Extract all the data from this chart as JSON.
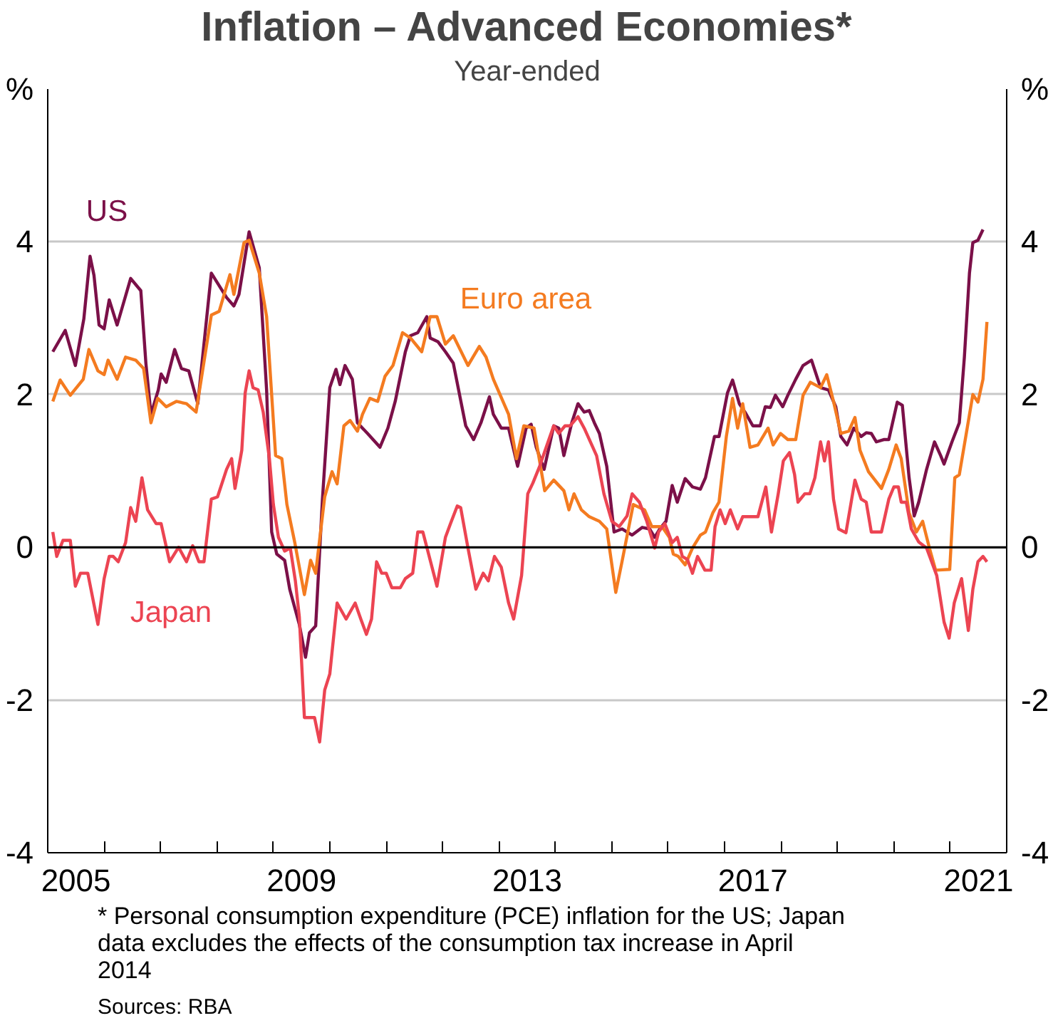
{
  "chart_data": {
    "type": "line",
    "title": "Inflation – Advanced Economies*",
    "subtitle": "Year-ended",
    "annotations": [
      "* Personal consumption expenditure (PCE) inflation for the US; Japan data excludes the effects of the consumption tax increase in April 2014",
      "Sources: RBA"
    ],
    "xlim": [
      2005,
      2022
    ],
    "xticks": [
      {
        "value": 2005.5,
        "label": "2005"
      },
      {
        "value": 2009.5,
        "label": "2009"
      },
      {
        "value": 2013.5,
        "label": "2013"
      },
      {
        "value": 2017.5,
        "label": "2017"
      },
      {
        "value": 2021.5,
        "label": "2021"
      },
      {
        "value": 2006,
        "label": null
      },
      {
        "value": 2007,
        "label": null
      },
      {
        "value": 2008,
        "label": null
      },
      {
        "value": 2009,
        "label": null
      },
      {
        "value": 2010,
        "label": null
      },
      {
        "value": 2011,
        "label": null
      },
      {
        "value": 2012,
        "label": null
      },
      {
        "value": 2013,
        "label": null
      },
      {
        "value": 2014,
        "label": null
      },
      {
        "value": 2015,
        "label": null
      },
      {
        "value": 2016,
        "label": null
      },
      {
        "value": 2017,
        "label": null
      },
      {
        "value": 2018,
        "label": null
      },
      {
        "value": 2019,
        "label": null
      },
      {
        "value": 2020,
        "label": null
      },
      {
        "value": 2021,
        "label": null
      }
    ],
    "ylim": [
      -4,
      6
    ],
    "yticks": [
      -4,
      -2,
      0,
      2,
      4,
      {
        "value": 6,
        "label": "%"
      }
    ],
    "y2lim": [
      -4,
      6
    ],
    "y2ticks": [
      -4,
      -2,
      0,
      2,
      4,
      {
        "value": 6,
        "label": "%"
      }
    ],
    "grid": "y",
    "legend": false,
    "line_style": "solid",
    "ref_lines": [
      {
        "axis": "y",
        "value": 0,
        "label": null,
        "color": "#000000"
      }
    ],
    "series": [
      {
        "name": "US",
        "color": "#7b1048",
        "x": [
          2005.09,
          2005.31,
          2005.49,
          2005.64,
          2005.75,
          2005.82,
          2005.91,
          2006.0,
          2006.09,
          2006.23,
          2006.47,
          2006.65,
          2006.74,
          2006.83,
          2006.96,
          2007.01,
          2007.1,
          2007.25,
          2007.37,
          2007.5,
          2007.66,
          2007.9,
          2008.17,
          2008.3,
          2008.39,
          2008.57,
          2008.75,
          2008.88,
          2008.97,
          2009.06,
          2009.2,
          2009.29,
          2009.46,
          2009.57,
          2009.64,
          2009.75,
          2009.87,
          2010.0,
          2010.11,
          2010.18,
          2010.27,
          2010.4,
          2010.49,
          2010.67,
          2010.89,
          2011.03,
          2011.16,
          2011.34,
          2011.43,
          2011.56,
          2011.72,
          2011.78,
          2011.92,
          2012.05,
          2012.19,
          2012.41,
          2012.55,
          2012.68,
          2012.83,
          2012.9,
          2013.04,
          2013.17,
          2013.33,
          2013.48,
          2013.57,
          2013.66,
          2013.8,
          2013.97,
          2014.06,
          2014.15,
          2014.29,
          2014.4,
          2014.51,
          2014.6,
          2014.69,
          2014.78,
          2014.91,
          2015.04,
          2015.18,
          2015.36,
          2015.54,
          2015.67,
          2015.76,
          2015.85,
          2015.96,
          2016.07,
          2016.16,
          2016.3,
          2016.43,
          2016.57,
          2016.66,
          2016.82,
          2016.9,
          2017.05,
          2017.14,
          2017.26,
          2017.36,
          2017.5,
          2017.63,
          2017.72,
          2017.81,
          2017.9,
          2018.03,
          2018.12,
          2018.26,
          2018.39,
          2018.54,
          2018.7,
          2018.84,
          2018.97,
          2019.06,
          2019.17,
          2019.29,
          2019.42,
          2019.51,
          2019.6,
          2019.69,
          2019.82,
          2019.91,
          2020.06,
          2020.15,
          2020.27,
          2020.36,
          2020.44,
          2020.58,
          2020.72,
          2020.83,
          2020.89,
          2021.03,
          2021.16,
          2021.25,
          2021.34,
          2021.4,
          2021.49,
          2021.58
        ],
        "values": [
          2.56,
          2.84,
          2.38,
          2.99,
          3.81,
          3.56,
          2.91,
          2.86,
          3.24,
          2.91,
          3.52,
          3.36,
          2.41,
          1.74,
          2.06,
          2.27,
          2.16,
          2.59,
          2.34,
          2.31,
          1.88,
          3.59,
          3.27,
          3.16,
          3.31,
          4.13,
          3.66,
          2.06,
          0.2,
          -0.09,
          -0.17,
          -0.55,
          -1.01,
          -1.44,
          -1.12,
          -1.03,
          0.63,
          2.09,
          2.33,
          2.13,
          2.38,
          2.2,
          1.63,
          1.49,
          1.31,
          1.56,
          1.91,
          2.56,
          2.77,
          2.81,
          3.02,
          2.74,
          2.69,
          2.56,
          2.41,
          1.59,
          1.41,
          1.63,
          1.97,
          1.74,
          1.56,
          1.56,
          1.06,
          1.56,
          1.61,
          1.31,
          1.02,
          1.59,
          1.56,
          1.2,
          1.63,
          1.88,
          1.77,
          1.79,
          1.63,
          1.49,
          1.06,
          0.2,
          0.24,
          0.16,
          0.26,
          0.24,
          0.13,
          0.24,
          0.34,
          0.81,
          0.59,
          0.9,
          0.79,
          0.76,
          0.91,
          1.45,
          1.45,
          2.02,
          2.19,
          1.88,
          1.77,
          1.59,
          1.59,
          1.84,
          1.83,
          1.99,
          1.84,
          1.99,
          2.2,
          2.38,
          2.45,
          2.09,
          2.06,
          1.84,
          1.45,
          1.34,
          1.56,
          1.45,
          1.5,
          1.49,
          1.38,
          1.41,
          1.41,
          1.9,
          1.86,
          0.91,
          0.41,
          0.59,
          1.02,
          1.38,
          1.2,
          1.09,
          1.38,
          1.63,
          2.49,
          3.59,
          3.99,
          4.02,
          4.16
        ]
      },
      {
        "name": "Euro area",
        "color": "#f47b20",
        "x": [
          2005.09,
          2005.22,
          2005.4,
          2005.63,
          2005.73,
          2005.89,
          2006.0,
          2006.07,
          2006.23,
          2006.38,
          2006.56,
          2006.7,
          2006.83,
          2006.95,
          2007.1,
          2007.28,
          2007.46,
          2007.63,
          2007.9,
          2008.04,
          2008.23,
          2008.3,
          2008.48,
          2008.57,
          2008.75,
          2008.88,
          2009.04,
          2009.15,
          2009.24,
          2009.38,
          2009.55,
          2009.66,
          2009.75,
          2009.91,
          2010.04,
          2010.13,
          2010.25,
          2010.36,
          2010.49,
          2010.58,
          2010.71,
          2010.85,
          2010.98,
          2011.12,
          2011.29,
          2011.43,
          2011.63,
          2011.78,
          2011.9,
          2012.05,
          2012.19,
          2012.45,
          2012.65,
          2012.77,
          2012.9,
          2013.17,
          2013.31,
          2013.44,
          2013.62,
          2013.81,
          2013.97,
          2014.15,
          2014.24,
          2014.33,
          2014.46,
          2014.6,
          2014.78,
          2014.91,
          2015.07,
          2015.18,
          2015.38,
          2015.58,
          2015.71,
          2015.89,
          2016.02,
          2016.09,
          2016.18,
          2016.3,
          2016.43,
          2016.57,
          2016.66,
          2016.79,
          2016.9,
          2017.03,
          2017.14,
          2017.23,
          2017.32,
          2017.45,
          2017.59,
          2017.77,
          2017.86,
          2017.99,
          2018.12,
          2018.26,
          2018.39,
          2018.52,
          2018.7,
          2018.81,
          2018.93,
          2019.06,
          2019.2,
          2019.31,
          2019.4,
          2019.55,
          2019.78,
          2019.91,
          2020.04,
          2020.13,
          2020.27,
          2020.4,
          2020.51,
          2020.63,
          2020.74,
          2020.99,
          2021.08,
          2021.16,
          2021.3,
          2021.4,
          2021.49,
          2021.58,
          2021.65
        ],
        "values": [
          1.91,
          2.19,
          1.99,
          2.2,
          2.59,
          2.31,
          2.26,
          2.45,
          2.2,
          2.49,
          2.45,
          2.34,
          1.63,
          1.95,
          1.84,
          1.91,
          1.88,
          1.77,
          3.04,
          3.09,
          3.57,
          3.31,
          3.99,
          4.02,
          3.59,
          3.02,
          1.2,
          1.16,
          0.56,
          0.06,
          -0.62,
          -0.17,
          -0.34,
          0.66,
          0.99,
          0.83,
          1.59,
          1.66,
          1.52,
          1.74,
          1.95,
          1.91,
          2.24,
          2.38,
          2.81,
          2.74,
          2.56,
          3.02,
          3.02,
          2.66,
          2.77,
          2.38,
          2.63,
          2.49,
          2.2,
          1.74,
          1.16,
          1.59,
          1.56,
          0.74,
          0.88,
          0.74,
          0.49,
          0.7,
          0.49,
          0.4,
          0.34,
          0.24,
          -0.59,
          -0.19,
          0.56,
          0.49,
          0.27,
          0.27,
          0.13,
          -0.09,
          -0.12,
          -0.23,
          -0.01,
          0.16,
          0.2,
          0.45,
          0.59,
          1.45,
          1.95,
          1.56,
          1.88,
          1.31,
          1.34,
          1.56,
          1.34,
          1.49,
          1.41,
          1.41,
          1.99,
          2.16,
          2.09,
          2.26,
          1.91,
          1.49,
          1.52,
          1.7,
          1.27,
          0.99,
          0.77,
          1.02,
          1.34,
          1.16,
          0.45,
          0.2,
          0.34,
          -0.01,
          -0.3,
          -0.29,
          0.91,
          0.95,
          1.56,
          2.0,
          1.9,
          2.2,
          2.95
        ]
      },
      {
        "name": "Japan",
        "color": "#ec4452",
        "x": [
          2005.09,
          2005.16,
          2005.27,
          2005.4,
          2005.49,
          2005.58,
          2005.71,
          2005.89,
          2006.0,
          2006.09,
          2006.16,
          2006.25,
          2006.38,
          2006.47,
          2006.56,
          2006.67,
          2006.77,
          2006.92,
          2007.01,
          2007.16,
          2007.32,
          2007.46,
          2007.57,
          2007.68,
          2007.77,
          2007.9,
          2008.01,
          2008.17,
          2008.26,
          2008.32,
          2008.44,
          2008.5,
          2008.57,
          2008.64,
          2008.73,
          2008.82,
          2008.93,
          2009.0,
          2009.09,
          2009.2,
          2009.3,
          2009.39,
          2009.46,
          2009.55,
          2009.73,
          2009.82,
          2009.91,
          2010.0,
          2010.13,
          2010.29,
          2010.45,
          2010.55,
          2010.65,
          2010.74,
          2010.83,
          2010.92,
          2011.0,
          2011.1,
          2011.25,
          2011.34,
          2011.47,
          2011.56,
          2011.65,
          2011.9,
          2012.05,
          2012.14,
          2012.26,
          2012.32,
          2012.45,
          2012.59,
          2012.72,
          2012.81,
          2012.92,
          2013.04,
          2013.17,
          2013.26,
          2013.4,
          2013.51,
          2013.6,
          2013.72,
          2013.87,
          2013.97,
          2014.06,
          2014.17,
          2014.26,
          2014.4,
          2014.51,
          2014.73,
          2014.86,
          2015.0,
          2015.13,
          2015.27,
          2015.36,
          2015.49,
          2015.62,
          2015.76,
          2015.83,
          2015.94,
          2016.07,
          2016.16,
          2016.25,
          2016.34,
          2016.43,
          2016.52,
          2016.65,
          2016.76,
          2016.83,
          2016.92,
          2017.01,
          2017.1,
          2017.23,
          2017.32,
          2017.46,
          2017.59,
          2017.73,
          2017.83,
          2017.95,
          2018.04,
          2018.15,
          2018.24,
          2018.3,
          2018.42,
          2018.51,
          2018.6,
          2018.7,
          2018.77,
          2018.84,
          2018.93,
          2019.02,
          2019.15,
          2019.31,
          2019.42,
          2019.51,
          2019.6,
          2019.78,
          2019.91,
          2020.0,
          2020.08,
          2020.13,
          2020.22,
          2020.31,
          2020.44,
          2020.58,
          2020.76,
          2020.89,
          2020.98,
          2021.07,
          2021.2,
          2021.32,
          2021.4,
          2021.49,
          2021.58,
          2021.65
        ],
        "values": [
          0.2,
          -0.12,
          0.09,
          0.09,
          -0.51,
          -0.34,
          -0.34,
          -1.01,
          -0.41,
          -0.12,
          -0.12,
          -0.19,
          0.06,
          0.52,
          0.34,
          0.91,
          0.49,
          0.31,
          0.31,
          -0.19,
          0.0,
          -0.19,
          0.02,
          -0.19,
          -0.19,
          0.63,
          0.66,
          1.02,
          1.16,
          0.77,
          1.27,
          2.02,
          2.31,
          2.09,
          2.06,
          1.77,
          1.16,
          0.56,
          0.13,
          -0.05,
          -0.01,
          -0.44,
          -0.91,
          -2.23,
          -2.23,
          -2.55,
          -1.87,
          -1.66,
          -0.73,
          -0.94,
          -0.73,
          -0.94,
          -1.14,
          -0.94,
          -0.19,
          -0.34,
          -0.34,
          -0.53,
          -0.53,
          -0.41,
          -0.34,
          0.2,
          0.2,
          -0.51,
          0.13,
          0.31,
          0.54,
          0.52,
          -0.01,
          -0.55,
          -0.34,
          -0.44,
          -0.12,
          -0.26,
          -0.73,
          -0.94,
          -0.37,
          0.7,
          0.84,
          1.06,
          1.38,
          1.59,
          1.49,
          1.59,
          1.59,
          1.71,
          1.56,
          1.2,
          0.7,
          0.34,
          0.27,
          0.41,
          0.7,
          0.59,
          0.34,
          -0.01,
          0.2,
          0.31,
          0.06,
          0.13,
          -0.12,
          -0.16,
          -0.34,
          -0.12,
          -0.3,
          -0.3,
          0.27,
          0.49,
          0.31,
          0.49,
          0.24,
          0.4,
          0.4,
          0.4,
          0.79,
          0.2,
          0.7,
          1.13,
          1.24,
          0.95,
          0.59,
          0.7,
          0.7,
          0.91,
          1.38,
          1.13,
          1.38,
          0.63,
          0.24,
          0.19,
          0.88,
          0.63,
          0.59,
          0.2,
          0.2,
          0.63,
          0.79,
          0.79,
          0.59,
          0.59,
          0.24,
          0.07,
          -0.01,
          -0.37,
          -0.98,
          -1.19,
          -0.73,
          -0.41,
          -1.09,
          -0.55,
          -0.19,
          -0.12,
          -0.19
        ]
      }
    ]
  }
}
